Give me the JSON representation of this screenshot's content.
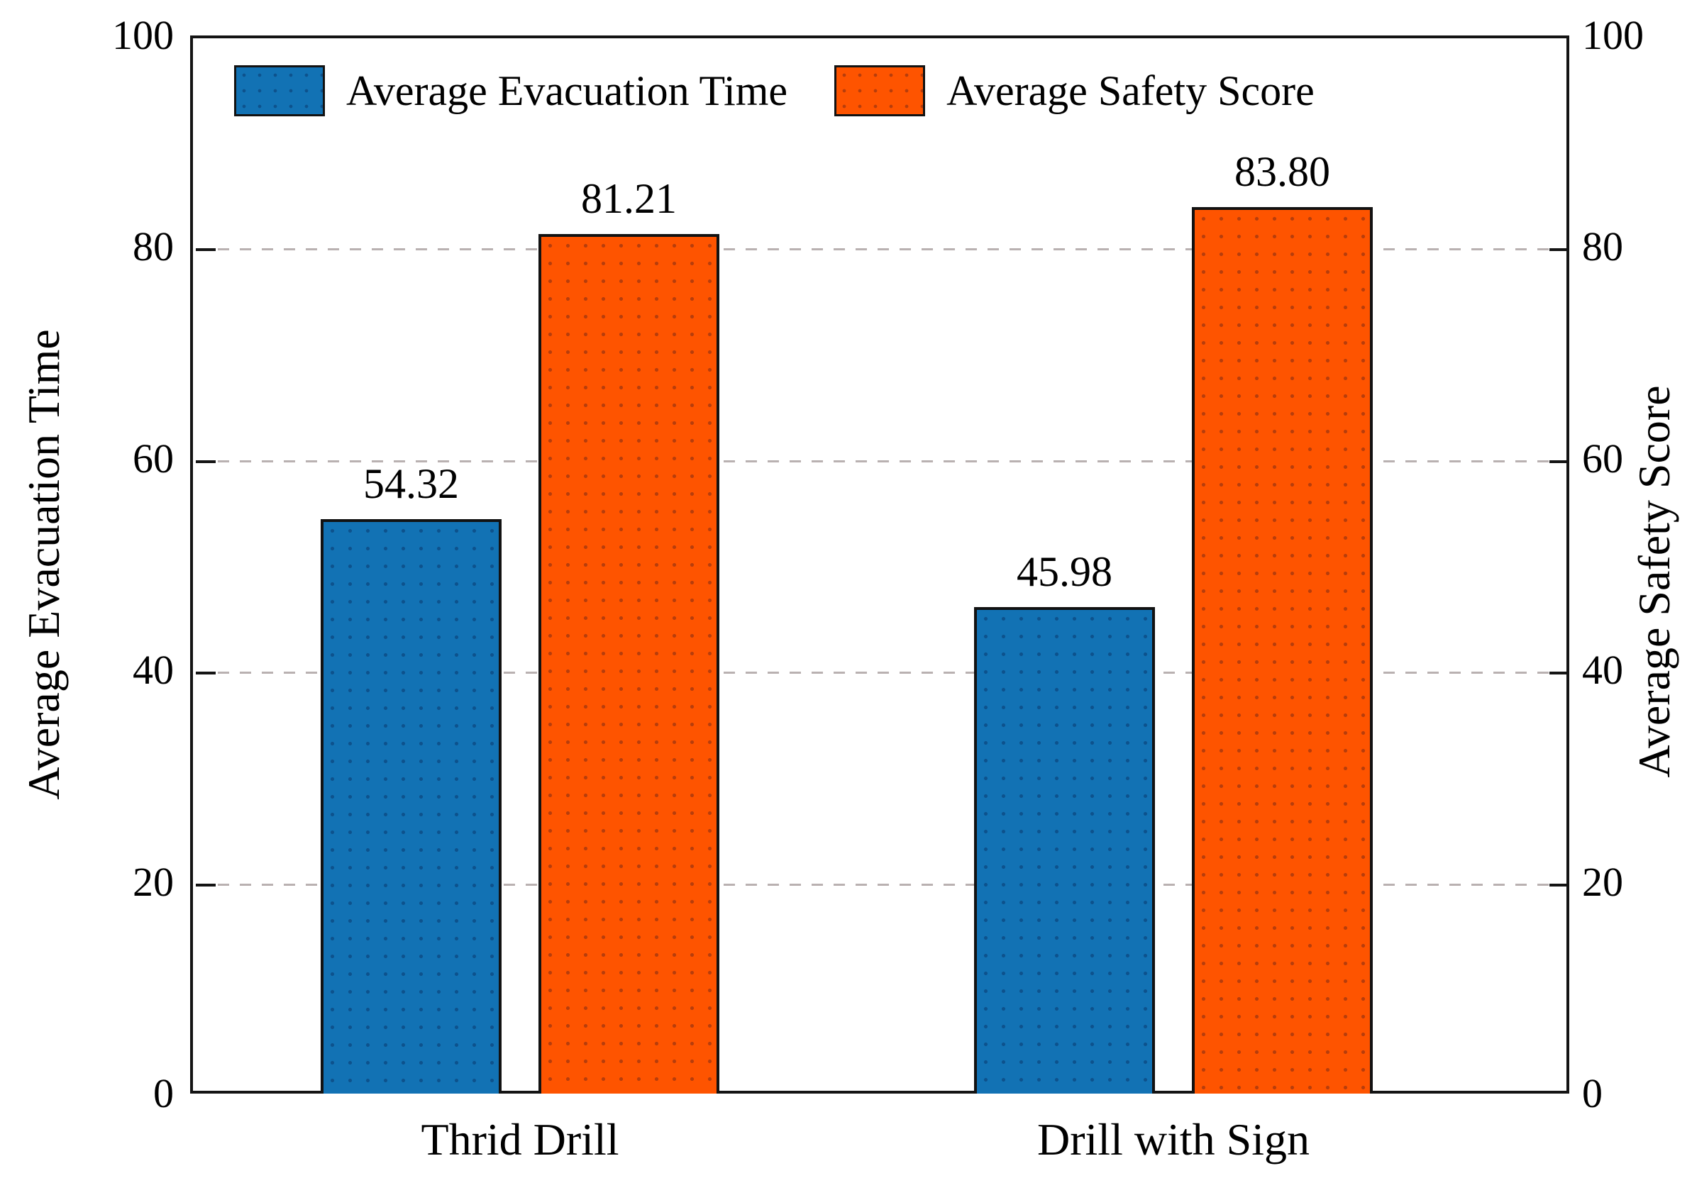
{
  "chart_data": {
    "type": "bar",
    "title": "",
    "categories": [
      "Thrid Drill",
      "Drill with Sign"
    ],
    "series": [
      {
        "name": "Average Evacuation Time",
        "color": "#1272b4",
        "values": [
          54.32,
          45.98
        ],
        "labels": [
          "54.32",
          "45.98"
        ]
      },
      {
        "name": "Average Safety Score",
        "color": "#fe5400",
        "values": [
          81.21,
          83.8
        ],
        "labels": [
          "81.21",
          "83.80"
        ]
      }
    ],
    "left_axis": {
      "label": "Average Evacuation Time",
      "ticks": [
        0,
        20,
        40,
        60,
        80,
        100
      ],
      "range": [
        0,
        100
      ]
    },
    "right_axis": {
      "label": "Average Safety Score",
      "ticks": [
        0,
        20,
        40,
        60,
        80,
        100
      ],
      "range": [
        0,
        100
      ]
    },
    "grid": {
      "horizontal_dashed_at": [
        20,
        40,
        60,
        80
      ],
      "color": "#b9b1b1"
    },
    "legend": {
      "position": "top-left-inside",
      "entries": [
        "Average Evacuation Time",
        "Average Safety Score"
      ]
    }
  },
  "colors": {
    "axis": "#141414",
    "text": "#000000",
    "background": "#ffffff",
    "series_blue": "#1272b4",
    "series_orange": "#fe5400",
    "gridline": "#b9b1b1"
  }
}
